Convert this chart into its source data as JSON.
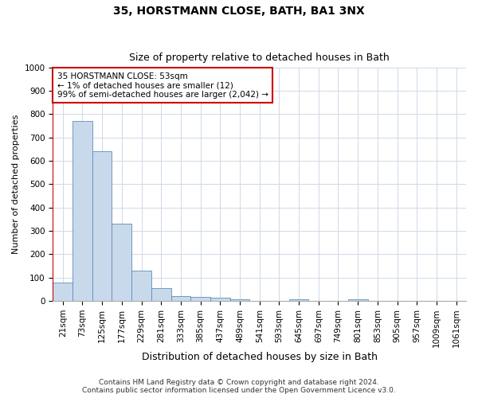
{
  "title_main": "35, HORSTMANN CLOSE, BATH, BA1 3NX",
  "title_sub": "Size of property relative to detached houses in Bath",
  "xlabel": "Distribution of detached houses by size in Bath",
  "ylabel": "Number of detached properties",
  "bar_labels": [
    "21sqm",
    "73sqm",
    "125sqm",
    "177sqm",
    "229sqm",
    "281sqm",
    "333sqm",
    "385sqm",
    "437sqm",
    "489sqm",
    "541sqm",
    "593sqm",
    "645sqm",
    "697sqm",
    "749sqm",
    "801sqm",
    "853sqm",
    "905sqm",
    "957sqm",
    "1009sqm",
    "1061sqm"
  ],
  "bar_values": [
    80,
    770,
    640,
    330,
    130,
    55,
    22,
    18,
    13,
    8,
    0,
    0,
    8,
    0,
    0,
    8,
    0,
    0,
    0,
    0,
    0
  ],
  "bar_color": "#c9d9ec",
  "bar_edge_color": "#5b8db8",
  "highlight_color": "#cc0000",
  "annotation_line1": "35 HORSTMANN CLOSE: 53sqm",
  "annotation_line2": "← 1% of detached houses are smaller (12)",
  "annotation_line3": "99% of semi-detached houses are larger (2,042) →",
  "annotation_box_color": "#ffffff",
  "annotation_box_edge": "#cc0000",
  "ylim": [
    0,
    1000
  ],
  "yticks": [
    0,
    100,
    200,
    300,
    400,
    500,
    600,
    700,
    800,
    900,
    1000
  ],
  "grid_color": "#d0d8e8",
  "footer_line1": "Contains HM Land Registry data © Crown copyright and database right 2024.",
  "footer_line2": "Contains public sector information licensed under the Open Government Licence v3.0.",
  "bg_color": "#ffffff",
  "title_main_fontsize": 10,
  "title_sub_fontsize": 9,
  "xlabel_fontsize": 9,
  "ylabel_fontsize": 8,
  "tick_fontsize": 7.5,
  "annotation_fontsize": 7.5,
  "footer_fontsize": 6.5
}
